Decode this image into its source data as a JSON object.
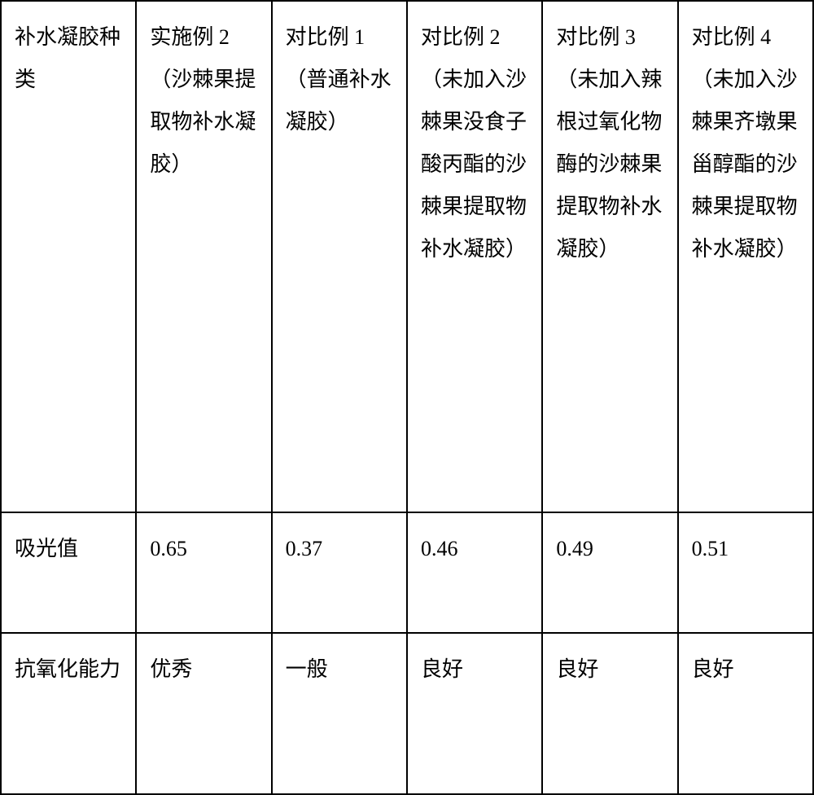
{
  "table": {
    "type": "table",
    "background_color": "#ffffff",
    "border_color": "#000000",
    "text_color": "#000000",
    "font_size": 26,
    "columns": 6,
    "rows": [
      {
        "cells": [
          "补水凝胶种类",
          "实施例 2（沙棘果提取物补水凝胶）",
          "对比例 1（普通补水凝胶）",
          "对比例 2（未加入沙棘果没食子酸丙酯的沙棘果提取物补水凝胶）",
          "对比例 3（未加入辣根过氧化物酶的沙棘果提取物补水凝胶）",
          "对比例 4（未加入沙棘果齐墩果甾醇酯的沙棘果提取物补水凝胶）"
        ]
      },
      {
        "cells": [
          "吸光值",
          "0.65",
          "0.37",
          "0.46",
          "0.49",
          "0.51"
        ]
      },
      {
        "cells": [
          "抗氧化能力",
          "优秀",
          "一般",
          "良好",
          "良好",
          "良好"
        ]
      }
    ]
  }
}
